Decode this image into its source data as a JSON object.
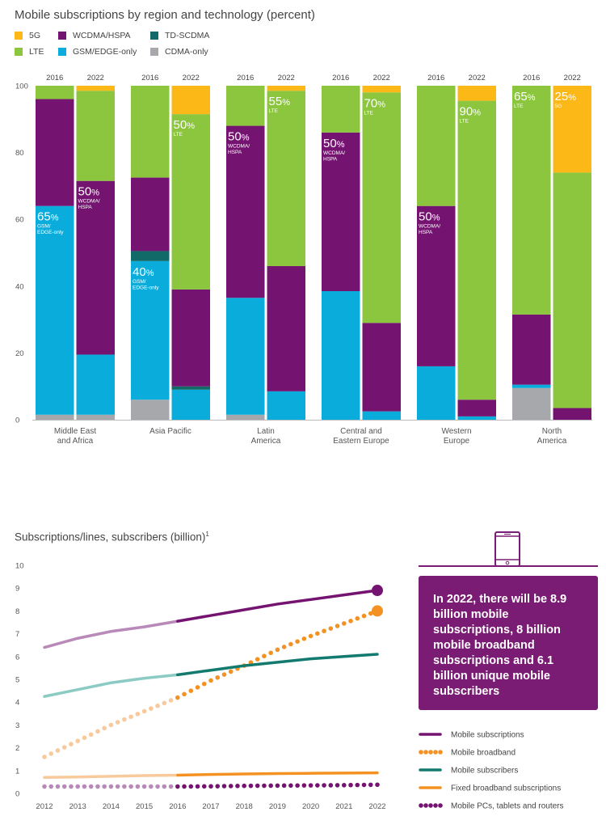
{
  "top_chart": {
    "title": "Mobile subscriptions by region and technology (percent)",
    "legend": [
      {
        "label": "5G",
        "color": "#fbb817"
      },
      {
        "label": "WCDMA/HSPA",
        "color": "#751371"
      },
      {
        "label": "TD-SCDMA",
        "color": "#116a67"
      },
      {
        "label": "LTE",
        "color": "#8cc63f"
      },
      {
        "label": "GSM/EDGE-only",
        "color": "#09acdb"
      },
      {
        "label": "CDMA-only",
        "color": "#a6a8ab"
      }
    ]
  },
  "bottom_chart": {
    "title": "Subscriptions/lines, subscribers (billion)",
    "footnote_mark": "1",
    "legend": [
      {
        "label": "Mobile subscriptions",
        "color": "#751371",
        "style": "solid"
      },
      {
        "label": "Mobile broadband",
        "color": "#f39223",
        "style": "dotted"
      },
      {
        "label": "Mobile subscribers",
        "color": "#137a6f",
        "style": "solid"
      },
      {
        "label": "Fixed broadband subscriptions",
        "color": "#f39223",
        "style": "solid"
      },
      {
        "label": "Mobile PCs, tablets and routers",
        "color": "#751371",
        "style": "dotted"
      }
    ],
    "callout": "In 2022, there will be 8.9 billion mobile subscriptions, 8 billion mobile broadband subscriptions and 6.1 billion unique mobile subscribers"
  },
  "chart_data": [
    {
      "type": "bar",
      "stacked": true,
      "title": "Mobile subscriptions by region and technology (percent)",
      "ylim": [
        0,
        100
      ],
      "yticks": [
        0,
        20,
        40,
        60,
        80,
        100
      ],
      "grid": false,
      "legend_position": "top-left",
      "series_order": [
        "CDMA-only",
        "GSM/EDGE-only",
        "TD-SCDMA",
        "WCDMA/HSPA",
        "LTE",
        "5G"
      ],
      "colors": {
        "CDMA-only": "#a6a8ab",
        "GSM/EDGE-only": "#09acdb",
        "TD-SCDMA": "#116a67",
        "WCDMA/HSPA": "#751371",
        "LTE": "#8cc63f",
        "5G": "#fbb817"
      },
      "regions": [
        {
          "name": "Middle East and Africa",
          "name_lines": [
            "Middle East",
            "and Africa"
          ],
          "bars": [
            {
              "year": "2016",
              "values": {
                "CDMA-only": 1.5,
                "GSM/EDGE-only": 62.5,
                "TD-SCDMA": 0,
                "WCDMA/HSPA": 32,
                "LTE": 4,
                "5G": 0
              },
              "callout": {
                "series": "GSM/EDGE-only",
                "value": "65%",
                "sub": [
                  "GSM/",
                  "EDGE-only"
                ]
              }
            },
            {
              "year": "2022",
              "values": {
                "CDMA-only": 1.5,
                "GSM/EDGE-only": 18,
                "TD-SCDMA": 0,
                "WCDMA/HSPA": 52,
                "LTE": 27,
                "5G": 1.5
              },
              "callout": {
                "series": "WCDMA/HSPA",
                "value": "50%",
                "sub": [
                  "WCDMA/",
                  "HSPA"
                ]
              }
            }
          ]
        },
        {
          "name": "Asia Pacific",
          "name_lines": [
            "Asia Pacific"
          ],
          "bars": [
            {
              "year": "2016",
              "values": {
                "CDMA-only": 6,
                "GSM/EDGE-only": 41.5,
                "TD-SCDMA": 3,
                "WCDMA/HSPA": 22,
                "LTE": 27.5,
                "5G": 0
              },
              "callout": {
                "series": "GSM/EDGE-only",
                "value": "40%",
                "sub": [
                  "GSM/",
                  "EDGE-only"
                ]
              }
            },
            {
              "year": "2022",
              "values": {
                "CDMA-only": 0,
                "GSM/EDGE-only": 9,
                "TD-SCDMA": 1,
                "WCDMA/HSPA": 29,
                "LTE": 52.5,
                "5G": 8.5
              },
              "callout": {
                "series": "LTE",
                "value": "50%",
                "sub": [
                  "LTE"
                ]
              }
            }
          ]
        },
        {
          "name": "Latin America",
          "name_lines": [
            "Latin",
            "America"
          ],
          "bars": [
            {
              "year": "2016",
              "values": {
                "CDMA-only": 1.5,
                "GSM/EDGE-only": 35,
                "TD-SCDMA": 0,
                "WCDMA/HSPA": 51.5,
                "LTE": 12,
                "5G": 0
              },
              "callout": {
                "series": "WCDMA/HSPA",
                "value": "50%",
                "sub": [
                  "WCDMA/",
                  "HSPA"
                ]
              }
            },
            {
              "year": "2022",
              "values": {
                "CDMA-only": 0,
                "GSM/EDGE-only": 8.5,
                "TD-SCDMA": 0,
                "WCDMA/HSPA": 37.5,
                "LTE": 52.5,
                "5G": 1.5
              },
              "callout": {
                "series": "LTE",
                "value": "55%",
                "sub": [
                  "LTE"
                ]
              }
            }
          ]
        },
        {
          "name": "Central and Eastern Europe",
          "name_lines": [
            "Central and",
            "Eastern Europe"
          ],
          "bars": [
            {
              "year": "2016",
              "values": {
                "CDMA-only": 0,
                "GSM/EDGE-only": 38.5,
                "TD-SCDMA": 0,
                "WCDMA/HSPA": 47.5,
                "LTE": 14,
                "5G": 0
              },
              "callout": {
                "series": "WCDMA/HSPA",
                "value": "50%",
                "sub": [
                  "WCDMA/",
                  "HSPA"
                ]
              }
            },
            {
              "year": "2022",
              "values": {
                "CDMA-only": 0,
                "GSM/EDGE-only": 2.5,
                "TD-SCDMA": 0,
                "WCDMA/HSPA": 26.5,
                "LTE": 69,
                "5G": 2
              },
              "callout": {
                "series": "LTE",
                "value": "70%",
                "sub": [
                  "LTE"
                ]
              }
            }
          ]
        },
        {
          "name": "Western Europe",
          "name_lines": [
            "Western",
            "Europe"
          ],
          "bars": [
            {
              "year": "2016",
              "values": {
                "CDMA-only": 0,
                "GSM/EDGE-only": 16,
                "TD-SCDMA": 0,
                "WCDMA/HSPA": 48,
                "LTE": 36,
                "5G": 0
              },
              "callout": {
                "series": "WCDMA/HSPA",
                "value": "50%",
                "sub": [
                  "WCDMA/",
                  "HSPA"
                ]
              }
            },
            {
              "year": "2022",
              "values": {
                "CDMA-only": 0,
                "GSM/EDGE-only": 1,
                "TD-SCDMA": 0,
                "WCDMA/HSPA": 5,
                "LTE": 89.5,
                "5G": 4.5
              },
              "callout": {
                "series": "LTE",
                "value": "90%",
                "sub": [
                  "LTE"
                ]
              }
            }
          ]
        },
        {
          "name": "North America",
          "name_lines": [
            "North",
            "America"
          ],
          "bars": [
            {
              "year": "2016",
              "values": {
                "CDMA-only": 9.5,
                "GSM/EDGE-only": 1,
                "TD-SCDMA": 0,
                "WCDMA/HSPA": 21,
                "LTE": 68.5,
                "5G": 0
              },
              "callout": {
                "series": "LTE",
                "value": "65%",
                "sub": [
                  "LTE"
                ]
              }
            },
            {
              "year": "2022",
              "values": {
                "CDMA-only": 0,
                "GSM/EDGE-only": 0,
                "TD-SCDMA": 0,
                "WCDMA/HSPA": 3.5,
                "LTE": 70.5,
                "5G": 26
              },
              "callout": {
                "series": "5G",
                "value": "25%",
                "sub": [
                  "5G"
                ]
              }
            }
          ]
        }
      ]
    },
    {
      "type": "line",
      "title": "Subscriptions/lines, subscribers (billion)",
      "x": [
        2012,
        2013,
        2014,
        2015,
        2016,
        2017,
        2018,
        2019,
        2020,
        2021,
        2022
      ],
      "ylim": [
        0,
        10
      ],
      "yticks": [
        0,
        1,
        2,
        3,
        4,
        5,
        6,
        7,
        8,
        9,
        10
      ],
      "grid": false,
      "legend_position": "right",
      "series": [
        {
          "name": "Mobile subscriptions",
          "color": "#751371",
          "light": "#b98ab9",
          "style": "solid",
          "end_marker": true,
          "values": [
            6.4,
            6.8,
            7.1,
            7.3,
            7.55,
            7.8,
            8.05,
            8.3,
            8.5,
            8.7,
            8.9
          ]
        },
        {
          "name": "Mobile broadband",
          "color": "#f39223",
          "light": "#f8c99b",
          "style": "dotted",
          "end_marker": true,
          "values": [
            1.6,
            2.3,
            3.0,
            3.6,
            4.2,
            4.95,
            5.6,
            6.3,
            6.9,
            7.45,
            8.0
          ]
        },
        {
          "name": "Mobile subscribers",
          "color": "#137a6f",
          "light": "#8ccbc4",
          "style": "solid",
          "end_marker": false,
          "values": [
            4.25,
            4.55,
            4.85,
            5.05,
            5.2,
            5.4,
            5.6,
            5.75,
            5.9,
            6.0,
            6.1
          ]
        },
        {
          "name": "Fixed broadband subscriptions",
          "color": "#f39223",
          "light": "#f8c99b",
          "style": "solid",
          "end_marker": false,
          "values": [
            0.7,
            0.72,
            0.75,
            0.78,
            0.8,
            0.83,
            0.85,
            0.87,
            0.88,
            0.89,
            0.9
          ]
        },
        {
          "name": "Mobile PCs, tablets and routers",
          "color": "#751371",
          "light": "#b98ab9",
          "style": "dotted",
          "end_marker": false,
          "values": [
            0.3,
            0.3,
            0.3,
            0.3,
            0.3,
            0.31,
            0.33,
            0.34,
            0.35,
            0.36,
            0.38
          ]
        }
      ],
      "forecast_from": 2016
    }
  ]
}
